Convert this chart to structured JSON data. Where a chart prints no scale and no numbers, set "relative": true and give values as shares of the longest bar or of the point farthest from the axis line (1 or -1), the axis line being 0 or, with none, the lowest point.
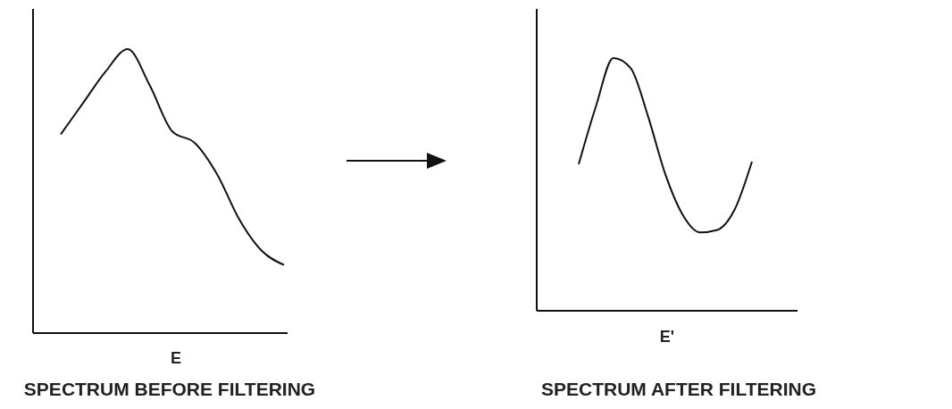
{
  "chart_data": [
    {
      "type": "line",
      "relative": true,
      "title": "SPECTRUM BEFORE FILTERING",
      "xlabel": "E",
      "categories": [
        null,
        null,
        null,
        null,
        null,
        null,
        null,
        null,
        null,
        null,
        null
      ],
      "series": [
        {
          "color": "#111111",
          "values": [
            0.7,
            0.81,
            0.92,
            1,
            0.87,
            0.71,
            0.67,
            0.56,
            0.4,
            0.29,
            0.24
          ]
        }
      ]
    },
    {
      "type": "line",
      "relative": true,
      "title": "SPECTRUM AFTER FILTERING",
      "xlabel": "E'",
      "categories": [
        null,
        null,
        null,
        null,
        null,
        null,
        null,
        null,
        null,
        null,
        null
      ],
      "series": [
        {
          "color": "#111111",
          "values": [
            0.58,
            0.81,
            1,
            0.96,
            0.77,
            0.54,
            0.38,
            0.31,
            0.32,
            0.4,
            0.59
          ]
        }
      ]
    }
  ]
}
